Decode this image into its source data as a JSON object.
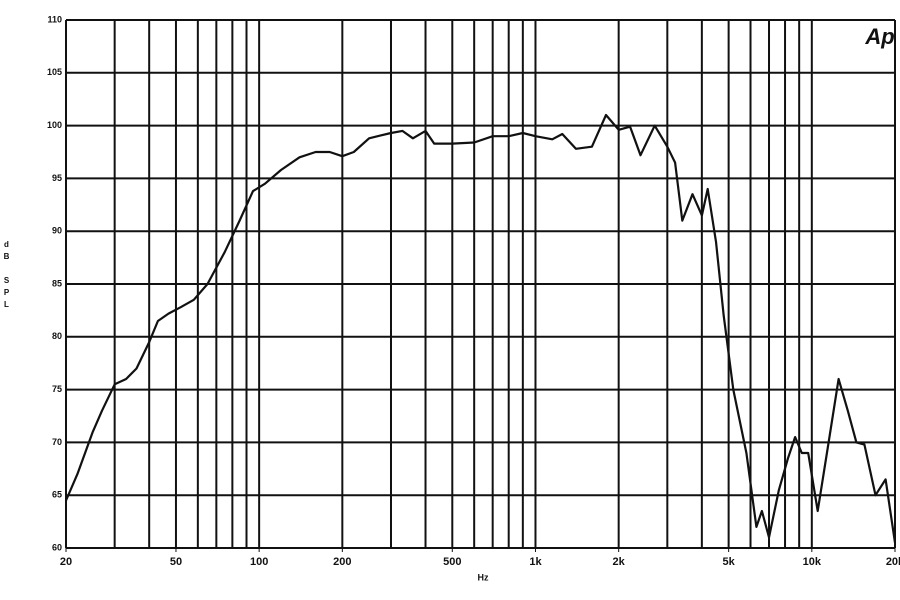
{
  "chart_data": {
    "type": "line",
    "x_label": "Hz",
    "y_label": "dB SPL",
    "annotation": "Ap",
    "x_log": true,
    "grid": true,
    "color": "#111111",
    "xlim": [
      20,
      20000
    ],
    "ylim": [
      60,
      110
    ],
    "xticks": [
      20,
      50,
      100,
      200,
      500,
      {
        "value": 1000,
        "label": "1k"
      },
      {
        "value": 2000,
        "label": "2k"
      },
      {
        "value": 5000,
        "label": "5k"
      },
      {
        "value": 10000,
        "label": "10k"
      },
      {
        "value": 20000,
        "label": "20k"
      }
    ],
    "xgrid": [
      20,
      30,
      40,
      50,
      60,
      70,
      80,
      90,
      100,
      200,
      300,
      400,
      500,
      600,
      700,
      800,
      900,
      1000,
      2000,
      3000,
      4000,
      5000,
      6000,
      7000,
      8000,
      9000,
      10000,
      20000
    ],
    "yticks": [
      60,
      65,
      70,
      75,
      80,
      85,
      90,
      95,
      100,
      105,
      110
    ],
    "x": [
      20,
      22,
      25,
      27,
      30,
      33,
      36,
      40,
      43,
      47,
      52,
      58,
      65,
      75,
      85,
      95,
      105,
      120,
      140,
      160,
      180,
      200,
      220,
      250,
      300,
      330,
      360,
      400,
      430,
      500,
      600,
      700,
      800,
      900,
      1000,
      1150,
      1250,
      1400,
      1600,
      1800,
      2000,
      2200,
      2400,
      2700,
      3000,
      3200,
      3400,
      3700,
      4000,
      4200,
      4500,
      4800,
      5200,
      5800,
      6300,
      6600,
      7000,
      7600,
      8200,
      8700,
      9200,
      9700,
      10500,
      11500,
      12500,
      13500,
      14500,
      15500,
      17000,
      18500,
      20000
    ],
    "series": [
      {
        "name": "SPL",
        "color": "#111111",
        "values": [
          64.5,
          67,
          71,
          73,
          75.5,
          76,
          77,
          79.5,
          81.5,
          82.2,
          82.8,
          83.5,
          85,
          88,
          91,
          93.8,
          94.5,
          95.8,
          97,
          97.5,
          97.5,
          97.1,
          97.5,
          98.8,
          99.3,
          99.5,
          98.8,
          99.5,
          98.3,
          98.3,
          98.4,
          99,
          99,
          99.3,
          99,
          98.7,
          99.2,
          97.8,
          98,
          101,
          99.6,
          99.9,
          97.2,
          100,
          98,
          96.5,
          91,
          93.5,
          91.5,
          94,
          89,
          82,
          75,
          69,
          62,
          63.5,
          61,
          65.5,
          68.5,
          70.5,
          69,
          69,
          63.5,
          70,
          76,
          73,
          70,
          69.8,
          65,
          66.5,
          60.5
        ]
      }
    ]
  }
}
